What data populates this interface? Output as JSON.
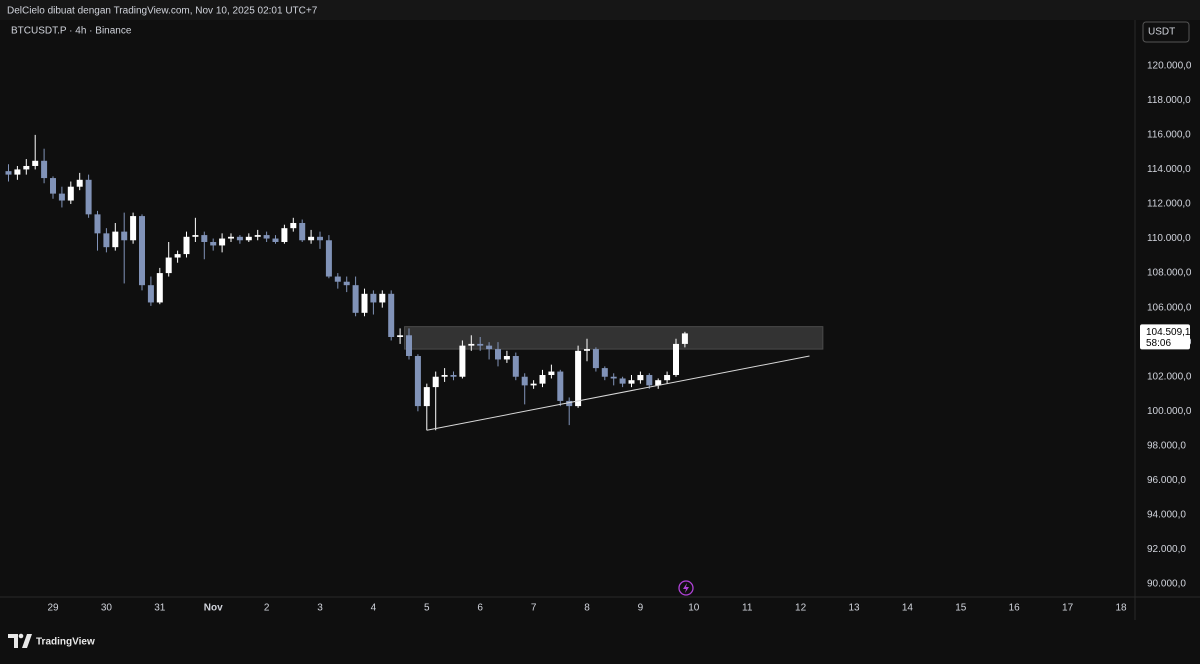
{
  "header": {
    "attribution": "DelCielo dibuat dengan TradingView.com, Nov 10, 2025 02:01 UTC+7",
    "brand": "TradingView"
  },
  "chart_data": {
    "type": "candlestick",
    "title": "BTCUSDT.P · 4h · Binance",
    "currency": "USDT",
    "up_color": "#ffffff",
    "down_color": "#8193b8",
    "categories": [
      null,
      null,
      null,
      null,
      null,
      "29",
      null,
      null,
      null,
      null,
      null,
      "30",
      null,
      null,
      null,
      null,
      null,
      "31",
      null,
      null,
      null,
      null,
      null,
      "Nov",
      null,
      null,
      null,
      null,
      null,
      "2",
      null,
      null,
      null,
      null,
      null,
      "3",
      null,
      null,
      null,
      null,
      null,
      "4",
      null,
      null,
      null,
      null,
      null,
      "5",
      null,
      null,
      null,
      null,
      null,
      "6",
      null,
      null,
      null,
      null,
      null,
      "7",
      null,
      null,
      null,
      null,
      null,
      "8",
      null,
      null,
      null,
      null,
      null,
      "9",
      null,
      null,
      null,
      null,
      null,
      "10",
      null,
      null,
      null,
      null,
      null,
      "11",
      null,
      null,
      null,
      null,
      null,
      "12",
      null,
      null,
      null,
      null,
      null,
      "13",
      null,
      null,
      null,
      null,
      null,
      "14",
      null,
      null,
      null,
      null,
      null,
      "15",
      null,
      null,
      null,
      null,
      null,
      "16",
      null,
      null,
      null,
      null,
      null,
      "17",
      null,
      null,
      null,
      null,
      null,
      "18",
      null
    ],
    "open": [
      113900,
      113700,
      114000,
      114200,
      114500,
      113500,
      112600,
      112200,
      113000,
      113400,
      111400,
      110300,
      109500,
      110400,
      109900,
      111300,
      107300,
      106300,
      108000,
      108900,
      109100,
      110100,
      110200,
      109800,
      109600,
      110000,
      110100,
      109900,
      110100,
      110200,
      110000,
      109800,
      110600,
      110900,
      109900,
      110100,
      109900,
      107800,
      107500,
      107300,
      105700,
      106800,
      106300,
      106800,
      104300,
      104400,
      103200,
      100300,
      101400,
      102000,
      102100,
      102000,
      103800,
      103900,
      103800,
      103600,
      103000,
      103200,
      102000,
      101500,
      101600,
      102100,
      102300,
      100600,
      100300,
      103500,
      103600,
      102500,
      102000,
      101900,
      101600,
      101800,
      102100,
      101500,
      101800,
      102100,
      103900,
      null,
      null,
      null,
      null,
      null,
      null,
      null,
      null,
      null,
      null,
      null,
      null,
      null,
      null,
      null,
      null,
      null,
      null,
      null,
      null,
      null,
      null,
      null,
      null,
      null,
      null,
      null,
      null,
      null,
      null,
      null,
      null,
      null,
      null,
      null,
      null,
      null,
      null,
      null,
      null,
      null,
      null,
      null,
      null,
      null,
      null,
      null,
      null,
      null,
      null
    ],
    "high": [
      114300,
      114200,
      114600,
      116000,
      115200,
      113600,
      113000,
      113300,
      113800,
      113700,
      111600,
      110600,
      110900,
      111500,
      111500,
      111400,
      107800,
      108300,
      109800,
      109300,
      110400,
      111200,
      110400,
      110000,
      110300,
      110300,
      110200,
      110300,
      110500,
      110400,
      110200,
      110800,
      111200,
      111100,
      110500,
      110400,
      110200,
      108000,
      107800,
      107800,
      107100,
      107000,
      107000,
      107000,
      104800,
      104800,
      103300,
      101600,
      102300,
      102500,
      102300,
      104100,
      104400,
      104300,
      104000,
      104000,
      103500,
      103400,
      102200,
      101800,
      102400,
      102700,
      102400,
      100800,
      103800,
      104200,
      103700,
      102600,
      102200,
      102000,
      102100,
      102300,
      102200,
      101900,
      102300,
      104200,
      104600,
      null,
      null,
      null,
      null,
      null,
      null,
      null,
      null,
      null,
      null,
      null,
      null,
      null,
      null,
      null,
      null,
      null,
      null,
      null,
      null,
      null,
      null,
      null,
      null,
      null,
      null,
      null,
      null,
      null,
      null,
      null,
      null,
      null,
      null,
      null,
      null,
      null,
      null,
      null,
      null,
      null,
      null,
      null,
      null,
      null,
      null,
      null,
      null,
      null,
      null
    ],
    "low": [
      113300,
      113400,
      113700,
      114000,
      113200,
      112300,
      111800,
      112000,
      112800,
      111200,
      109300,
      109200,
      109300,
      107400,
      109700,
      107000,
      106100,
      106200,
      107800,
      108600,
      108900,
      109800,
      108800,
      109300,
      109200,
      109800,
      109700,
      109800,
      109900,
      109800,
      109700,
      109700,
      110400,
      109800,
      109700,
      109400,
      107700,
      107100,
      106900,
      105500,
      105500,
      105600,
      106000,
      104100,
      103900,
      103000,
      100000,
      98900,
      98900,
      101700,
      101800,
      101900,
      103500,
      103500,
      103000,
      102600,
      102800,
      101800,
      100400,
      101300,
      101400,
      101900,
      100300,
      99200,
      100200,
      102900,
      102300,
      101800,
      101500,
      101400,
      101400,
      101600,
      101300,
      101300,
      101600,
      102000,
      103700,
      null,
      null,
      null,
      null,
      null,
      null,
      null,
      null,
      null,
      null,
      null,
      null,
      null,
      null,
      null,
      null,
      null,
      null,
      null,
      null,
      null,
      null,
      null,
      null,
      null,
      null,
      null,
      null,
      null,
      null,
      null,
      null,
      null,
      null,
      null,
      null,
      null,
      null,
      null,
      null,
      null,
      null,
      null,
      null,
      null,
      null,
      null,
      null,
      null,
      null
    ],
    "close": [
      113700,
      114000,
      114200,
      114500,
      113500,
      112600,
      112200,
      113000,
      113400,
      111400,
      110300,
      109500,
      110400,
      109900,
      111300,
      107300,
      106300,
      108000,
      108900,
      109100,
      110100,
      110200,
      109800,
      109600,
      110000,
      110100,
      109900,
      110100,
      110200,
      110000,
      109800,
      110600,
      110900,
      109900,
      110100,
      109900,
      107800,
      107500,
      107300,
      105700,
      106800,
      106300,
      106800,
      104300,
      104400,
      103200,
      100300,
      101400,
      102000,
      102100,
      102000,
      103800,
      103900,
      103800,
      103600,
      103000,
      103200,
      102000,
      101500,
      101600,
      102100,
      102300,
      100600,
      100300,
      103500,
      103600,
      102500,
      102000,
      101900,
      101600,
      101800,
      102100,
      101500,
      101800,
      102100,
      103900,
      104509.1,
      null,
      null,
      null,
      null,
      null,
      null,
      null,
      null,
      null,
      null,
      null,
      null,
      null,
      null,
      null,
      null,
      null,
      null,
      null,
      null,
      null,
      null,
      null,
      null,
      null,
      null,
      null,
      null,
      null,
      null,
      null,
      null,
      null,
      null,
      null,
      null,
      null,
      null,
      null,
      null,
      null,
      null,
      null,
      null,
      null,
      null,
      null,
      null,
      null,
      null
    ],
    "ylim": [
      89250,
      122650
    ],
    "yticks": [
      {
        "value": 90000,
        "label": "90.000,0"
      },
      {
        "value": 92000,
        "label": "92.000,0"
      },
      {
        "value": 94000,
        "label": "94.000,0"
      },
      {
        "value": 96000,
        "label": "96.000,0"
      },
      {
        "value": 98000,
        "label": "98.000,0"
      },
      {
        "value": 100000,
        "label": "100.000,0"
      },
      {
        "value": 102000,
        "label": "102.000,0"
      },
      {
        "value": 104000,
        "label": "104.000,0"
      },
      {
        "value": 106000,
        "label": "106.000,0"
      },
      {
        "value": 108000,
        "label": "108.000,0"
      },
      {
        "value": 110000,
        "label": "110.000,0"
      },
      {
        "value": 112000,
        "label": "112.000,0"
      },
      {
        "value": 114000,
        "label": "114.000,0"
      },
      {
        "value": 116000,
        "label": "116.000,0"
      },
      {
        "value": 118000,
        "label": "118.000,0"
      },
      {
        "value": 120000,
        "label": "120.000,0"
      }
    ],
    "last_price": {
      "value": 104509.1,
      "label": "104.509,1"
    },
    "countdown": "58:06",
    "zone": {
      "start": 45,
      "end": 91,
      "high": 104900,
      "low": 103600
    },
    "trendline": {
      "start": 47,
      "end": 90,
      "from": 98900,
      "to": 103200
    }
  }
}
